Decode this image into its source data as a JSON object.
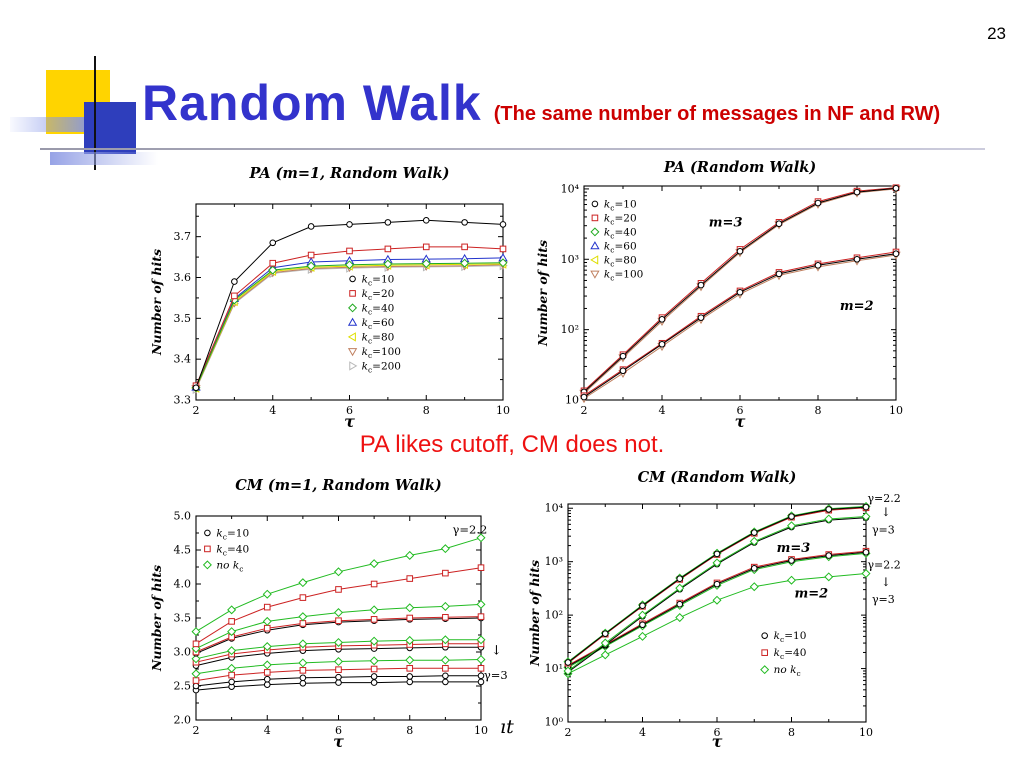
{
  "page_number": "23",
  "header": {
    "title": "Random Walk",
    "subtitle": "(The same number of messages in NF and RW)"
  },
  "caption": "PA likes cutoff, CM does not.",
  "bottom_fragment": "ıt",
  "colors": {
    "title": "#3333cc",
    "subtitle": "#cc0000",
    "caption": "#ee1111",
    "accent_yellow": "#ffd400",
    "accent_blue": "#2e3ebc"
  },
  "chart_data": [
    {
      "id": "pa-m1",
      "type": "line",
      "title": "PA (m=1, Random Walk)",
      "xlabel": "τ",
      "ylabel": "Number of hits",
      "x": [
        2,
        3,
        4,
        5,
        6,
        7,
        8,
        9,
        10
      ],
      "xmin": 2,
      "xmax": 10,
      "xticks": [
        2,
        4,
        6,
        8,
        10
      ],
      "ylog": false,
      "ymin": 3.3,
      "ymax": 3.78,
      "yticks": [
        3.3,
        3.4,
        3.5,
        3.6,
        3.7
      ],
      "ytick_labels": [
        "3.3",
        "3.4",
        "3.5",
        "3.6",
        "3.7"
      ],
      "series": [
        {
          "name": "k_c=200",
          "color": "#b8b8b8",
          "marker": "triangle-right",
          "values": [
            3.326,
            3.536,
            3.61,
            3.62,
            3.623,
            3.625,
            3.626,
            3.627,
            3.629
          ]
        },
        {
          "name": "k_c=100",
          "color": "#c08060",
          "marker": "triangle-down",
          "values": [
            3.328,
            3.538,
            3.612,
            3.622,
            3.625,
            3.627,
            3.628,
            3.629,
            3.631
          ]
        },
        {
          "name": "k_c=80",
          "color": "#dede00",
          "marker": "triangle-left",
          "values": [
            3.329,
            3.541,
            3.615,
            3.625,
            3.628,
            3.63,
            3.631,
            3.632,
            3.633
          ]
        },
        {
          "name": "k_c=60",
          "color": "#2233cc",
          "marker": "triangle-up",
          "values": [
            3.331,
            3.548,
            3.624,
            3.638,
            3.641,
            3.644,
            3.645,
            3.646,
            3.648
          ]
        },
        {
          "name": "k_c=40",
          "color": "#22aa22",
          "marker": "diamond",
          "values": [
            3.33,
            3.545,
            3.618,
            3.628,
            3.631,
            3.633,
            3.634,
            3.635,
            3.636
          ]
        },
        {
          "name": "k_c=20",
          "color": "#cc2222",
          "marker": "square",
          "values": [
            3.335,
            3.555,
            3.635,
            3.655,
            3.665,
            3.67,
            3.675,
            3.675,
            3.67
          ]
        },
        {
          "name": "k_c=10",
          "color": "#000000",
          "marker": "circle",
          "values": [
            3.33,
            3.59,
            3.685,
            3.725,
            3.73,
            3.735,
            3.74,
            3.735,
            3.73
          ]
        }
      ],
      "legend": {
        "fx": 0.51,
        "fy": 0.4,
        "spacing": 14.5,
        "items": [
          {
            "label": "k_c=10",
            "color": "#000000",
            "marker": "circle"
          },
          {
            "label": "k_c=20",
            "color": "#cc2222",
            "marker": "square"
          },
          {
            "label": "k_c=40",
            "color": "#22aa22",
            "marker": "diamond"
          },
          {
            "label": "k_c=60",
            "color": "#2233cc",
            "marker": "triangle-up"
          },
          {
            "label": "k_c=80",
            "color": "#dede00",
            "marker": "triangle-left"
          },
          {
            "label": "k_c=100",
            "color": "#c08060",
            "marker": "triangle-down"
          },
          {
            "label": "k_c=200",
            "color": "#b8b8b8",
            "marker": "triangle-right"
          }
        ]
      },
      "annotations": []
    },
    {
      "id": "pa-rw",
      "type": "line",
      "title": "PA (Random Walk)",
      "xlabel": "τ",
      "ylabel": "Number of hits",
      "x": [
        2,
        3,
        4,
        5,
        6,
        7,
        8,
        9,
        10
      ],
      "xmin": 2,
      "xmax": 10,
      "xticks": [
        2,
        4,
        6,
        8,
        10
      ],
      "ylog": true,
      "ymin": 10,
      "ymax": 11000,
      "yticks": [
        10,
        100,
        1000,
        10000
      ],
      "ytick_labels": [
        "10",
        "10²",
        "10³",
        "10⁴"
      ],
      "series": [
        {
          "name": "m=3 k_c=100",
          "color": "#c08060",
          "marker": "triangle-down",
          "values": [
            12.5,
            40,
            132,
            410,
            1250,
            3100,
            6100,
            8800,
            10000
          ]
        },
        {
          "name": "m=3 k_c=20",
          "color": "#cc2222",
          "marker": "square",
          "values": [
            13.5,
            44,
            148,
            455,
            1380,
            3350,
            6600,
            9300,
            10400
          ]
        },
        {
          "name": "m=3 k_c=10",
          "color": "#000000",
          "marker": "circle",
          "values": [
            13,
            42,
            140,
            430,
            1300,
            3200,
            6300,
            9000,
            10200
          ]
        },
        {
          "name": "m=2 k_c=100",
          "color": "#c08060",
          "marker": "triangle-down",
          "values": [
            10.5,
            24,
            58,
            140,
            320,
            590,
            780,
            950,
            1150
          ]
        },
        {
          "name": "m=2 k_c=20",
          "color": "#cc2222",
          "marker": "square",
          "values": [
            11.5,
            27,
            64,
            155,
            355,
            650,
            860,
            1050,
            1270
          ]
        },
        {
          "name": "m=2 k_c=10",
          "color": "#000000",
          "marker": "circle",
          "values": [
            11,
            26,
            62,
            148,
            340,
            620,
            820,
            1000,
            1200
          ]
        }
      ],
      "legend": {
        "fx": 0.035,
        "fy": 0.1,
        "spacing": 14,
        "items": [
          {
            "label": "k_c=10",
            "color": "#000000",
            "marker": "circle"
          },
          {
            "label": "k_c=20",
            "color": "#cc2222",
            "marker": "square"
          },
          {
            "label": "k_c=40",
            "color": "#22aa22",
            "marker": "diamond"
          },
          {
            "label": "k_c=60",
            "color": "#2233cc",
            "marker": "triangle-up"
          },
          {
            "label": "k_c=80",
            "color": "#dede00",
            "marker": "triangle-left"
          },
          {
            "label": "k_c=100",
            "color": "#c08060",
            "marker": "triangle-down"
          }
        ]
      },
      "annotations": [
        {
          "text": "m=3",
          "fx": 0.4,
          "fy": 0.19,
          "italic": true,
          "bold": true,
          "size": 13
        },
        {
          "text": "m=2",
          "fx": 0.82,
          "fy": 0.58,
          "italic": true,
          "bold": true,
          "size": 13
        }
      ]
    },
    {
      "id": "cm-m1",
      "type": "line",
      "title": "CM (m=1, Random Walk)",
      "xlabel": "τ",
      "ylabel": "Number of hits",
      "x": [
        2,
        3,
        4,
        5,
        6,
        7,
        8,
        9,
        10
      ],
      "xmin": 2,
      "xmax": 10,
      "xticks": [
        2,
        4,
        6,
        8,
        10
      ],
      "ylog": false,
      "ymin": 2.0,
      "ymax": 5.0,
      "yticks": [
        2.0,
        2.5,
        3.0,
        3.5,
        4.0,
        4.5,
        5.0
      ],
      "ytick_labels": [
        "2.0",
        "2.5",
        "3.0",
        "3.5",
        "4.0",
        "4.5",
        "5.0"
      ],
      "series": [
        {
          "name": "k_c=10 (γ=3, lowest)",
          "color": "#000000",
          "marker": "circle",
          "values": [
            2.44,
            2.49,
            2.52,
            2.54,
            2.55,
            2.55,
            2.56,
            2.56,
            2.56
          ]
        },
        {
          "name": "k_c=10 (γ=3)",
          "color": "#000000",
          "marker": "circle",
          "values": [
            2.5,
            2.56,
            2.6,
            2.62,
            2.63,
            2.64,
            2.64,
            2.65,
            2.65
          ]
        },
        {
          "name": "k_c=40 (γ=3)",
          "color": "#cc2222",
          "marker": "square",
          "values": [
            2.58,
            2.66,
            2.7,
            2.73,
            2.74,
            2.75,
            2.76,
            2.76,
            2.76
          ]
        },
        {
          "name": "no k_c (γ=3)",
          "color": "#22bb22",
          "marker": "diamond",
          "values": [
            2.68,
            2.76,
            2.81,
            2.84,
            2.86,
            2.87,
            2.88,
            2.88,
            2.89
          ]
        },
        {
          "name": "k_c=10 (mid)",
          "color": "#000000",
          "marker": "circle",
          "values": [
            2.8,
            2.92,
            2.98,
            3.02,
            3.04,
            3.05,
            3.06,
            3.07,
            3.07
          ]
        },
        {
          "name": "k_c=40 (mid)",
          "color": "#cc2222",
          "marker": "square",
          "values": [
            2.85,
            2.97,
            3.03,
            3.07,
            3.09,
            3.1,
            3.11,
            3.12,
            3.12
          ]
        },
        {
          "name": "no k_c (mid)",
          "color": "#22bb22",
          "marker": "diamond",
          "values": [
            2.9,
            3.02,
            3.08,
            3.12,
            3.14,
            3.16,
            3.17,
            3.18,
            3.18
          ]
        },
        {
          "name": "k_c=10 (upper mid)",
          "color": "#000000",
          "marker": "circle",
          "values": [
            2.98,
            3.2,
            3.32,
            3.4,
            3.44,
            3.46,
            3.48,
            3.49,
            3.5
          ]
        },
        {
          "name": "k_c=40 (upper mid)",
          "color": "#cc2222",
          "marker": "square",
          "values": [
            3.0,
            3.22,
            3.35,
            3.42,
            3.46,
            3.48,
            3.5,
            3.51,
            3.52
          ]
        },
        {
          "name": "no k_c (upper mid)",
          "color": "#22bb22",
          "marker": "diamond",
          "values": [
            3.05,
            3.3,
            3.45,
            3.52,
            3.58,
            3.62,
            3.65,
            3.67,
            3.7
          ]
        },
        {
          "name": "k_c=40 (γ=2.2)",
          "color": "#cc2222",
          "marker": "square",
          "values": [
            3.12,
            3.45,
            3.66,
            3.8,
            3.92,
            4.0,
            4.08,
            4.16,
            4.24
          ]
        },
        {
          "name": "no k_c (γ=2.2)",
          "color": "#22bb22",
          "marker": "diamond",
          "values": [
            3.3,
            3.62,
            3.85,
            4.02,
            4.18,
            4.3,
            4.42,
            4.52,
            4.68
          ]
        }
      ],
      "legend": {
        "fx": 0.04,
        "fy": 0.1,
        "spacing": 16,
        "items": [
          {
            "label": "k_c=10",
            "color": "#000000",
            "marker": "circle"
          },
          {
            "label": "k_c=40",
            "color": "#cc2222",
            "marker": "square"
          },
          {
            "label": "no k_c",
            "color": "#22bb22",
            "marker": "diamond"
          }
        ]
      },
      "annotations": [
        {
          "text": "γ=2.2",
          "fx": 0.9,
          "fy": 0.085,
          "size": 11.5
        },
        {
          "text": "↓",
          "fx": 1.035,
          "fy": 0.68,
          "size": 13
        },
        {
          "text": "γ=3",
          "fx": 1.01,
          "fy": 0.8,
          "size": 11.5
        }
      ]
    },
    {
      "id": "cm-rw",
      "type": "line",
      "title": "CM (Random Walk)",
      "xlabel": "τ",
      "ylabel": "Number of hits",
      "x": [
        2,
        3,
        4,
        5,
        6,
        7,
        8,
        9,
        10
      ],
      "xmin": 2,
      "xmax": 10,
      "xticks": [
        2,
        4,
        6,
        8,
        10
      ],
      "ylog": true,
      "ymin": 1,
      "ymax": 12000,
      "yticks": [
        1,
        10,
        100,
        1000,
        10000
      ],
      "ytick_labels": [
        "10⁰",
        "10¹",
        "10²",
        "10³",
        "10⁴"
      ],
      "series": [
        {
          "name": "m=2 no k_c (γ=3)",
          "color": "#22bb22",
          "marker": "diamond",
          "values": [
            8,
            18,
            40,
            90,
            190,
            340,
            450,
            520,
            600
          ]
        },
        {
          "name": "m=2 k_c=40 (γ=2.2)",
          "color": "#cc2222",
          "marker": "square",
          "values": [
            11.5,
            28,
            69,
            168,
            400,
            790,
            1100,
            1360,
            1570
          ]
        },
        {
          "name": "m=2 no k_c (γ=2.2)",
          "color": "#22bb22",
          "marker": "diamond",
          "values": [
            10.5,
            26,
            63,
            152,
            360,
            710,
            1000,
            1240,
            1430
          ]
        },
        {
          "name": "m=2 k_c=10 (γ=2.2)",
          "color": "#000000",
          "marker": "circle",
          "values": [
            11,
            27,
            66,
            160,
            380,
            750,
            1050,
            1300,
            1500
          ]
        },
        {
          "name": "m=3 k_c=10 (γ=3)",
          "color": "#000000",
          "marker": "circle",
          "values": [
            8.6,
            28,
            95,
            305,
            900,
            2280,
            4450,
            6000,
            6650
          ]
        },
        {
          "name": "m=3 no k_c (γ=3)",
          "color": "#22bb22",
          "marker": "diamond",
          "values": [
            9,
            30,
            100,
            320,
            950,
            2400,
            4700,
            6300,
            7000
          ]
        },
        {
          "name": "m=3 k_c=40 (γ=2.2)",
          "color": "#cc2222",
          "marker": "square",
          "values": [
            12.6,
            44,
            146,
            466,
            1360,
            3400,
            6800,
            9200,
            10200
          ]
        },
        {
          "name": "m=3 no k_c (γ=2.2)",
          "color": "#22bb22",
          "marker": "diamond",
          "values": [
            13.4,
            46,
            155,
            494,
            1440,
            3600,
            7200,
            9800,
            10800
          ]
        },
        {
          "name": "m=3 k_c=10 (γ=2.2)",
          "color": "#000000",
          "marker": "circle",
          "values": [
            13,
            45,
            150,
            480,
            1400,
            3500,
            7000,
            9500,
            10500
          ]
        }
      ],
      "legend": {
        "fx": 0.66,
        "fy": 0.62,
        "spacing": 17,
        "items": [
          {
            "label": "k_c=10",
            "color": "#000000",
            "marker": "circle"
          },
          {
            "label": "k_c=40",
            "color": "#cc2222",
            "marker": "square"
          },
          {
            "label": "no k_c",
            "color": "#22bb22",
            "marker": "diamond"
          }
        ]
      },
      "annotations": [
        {
          "text": "m=3",
          "fx": 0.7,
          "fy": 0.22,
          "italic": true,
          "bold": true,
          "size": 13
        },
        {
          "text": "m=2",
          "fx": 0.76,
          "fy": 0.43,
          "italic": true,
          "bold": true,
          "size": 13
        },
        {
          "text": "γ=2.2",
          "fx": 1.005,
          "fy": -0.01,
          "size": 11
        },
        {
          "text": "↓",
          "fx": 1.05,
          "fy": 0.055,
          "size": 12
        },
        {
          "text": "γ=3",
          "fx": 1.02,
          "fy": 0.135,
          "size": 11
        },
        {
          "text": "γ=2.2",
          "fx": 1.005,
          "fy": 0.295,
          "size": 11
        },
        {
          "text": "↓",
          "fx": 1.05,
          "fy": 0.375,
          "size": 12
        },
        {
          "text": "γ=3",
          "fx": 1.02,
          "fy": 0.455,
          "size": 11
        }
      ]
    }
  ]
}
